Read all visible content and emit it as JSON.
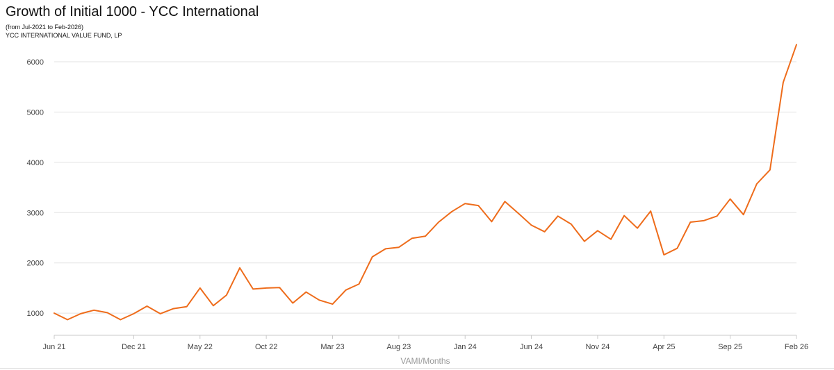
{
  "chart_data": {
    "type": "line",
    "title": "Growth of Initial 1000 - YCC International",
    "subtitle": "(from Jul-2021 to Feb-2026)",
    "fund_name": "YCC INTERNATIONAL VALUE FUND, LP",
    "xlabel": "VAMI/Months",
    "ylabel": "",
    "ylim": [
      560,
      6400
    ],
    "yticks": [
      1000,
      2000,
      3000,
      4000,
      5000,
      6000
    ],
    "x_tick_labels": [
      "Jun 21",
      "Dec 21",
      "May 22",
      "Oct 22",
      "Mar 23",
      "Aug 23",
      "Jan 24",
      "Jun 24",
      "Nov 24",
      "Apr 25",
      "Sep 25",
      "Feb 26"
    ],
    "x_tick_positions": [
      0,
      6,
      11,
      16,
      21,
      26,
      31,
      36,
      41,
      46,
      51,
      56
    ],
    "grid": "horizontal",
    "line_color": "#ee6c1b",
    "series": [
      {
        "name": "",
        "values": [
          1000,
          870,
          990,
          1060,
          1010,
          870,
          990,
          1140,
          990,
          1090,
          1130,
          1500,
          1150,
          1360,
          1900,
          1480,
          1500,
          1510,
          1200,
          1420,
          1260,
          1180,
          1460,
          1580,
          2120,
          2280,
          2310,
          2490,
          2530,
          2810,
          3020,
          3180,
          3140,
          2820,
          3220,
          2990,
          2750,
          2620,
          2930,
          2770,
          2430,
          2640,
          2470,
          2940,
          2690,
          3030,
          2160,
          2290,
          2810,
          2840,
          2930,
          3270,
          2960,
          3570,
          3850,
          5590,
          6340
        ]
      }
    ]
  }
}
